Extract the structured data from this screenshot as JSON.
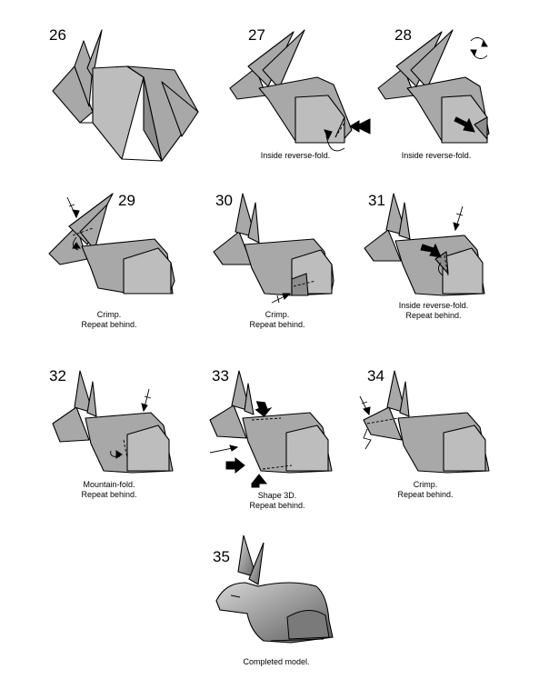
{
  "steps": [
    {
      "number": "26",
      "caption": ""
    },
    {
      "number": "27",
      "caption": "Inside reverse-fold."
    },
    {
      "number": "28",
      "caption": "Inside reverse-fold."
    },
    {
      "number": "29",
      "caption": "Crimp.\nRepeat behind."
    },
    {
      "number": "30",
      "caption": "Crimp.\nRepeat behind."
    },
    {
      "number": "31",
      "caption": "Inside reverse-fold.\nRepeat behind."
    },
    {
      "number": "32",
      "caption": "Mountain-fold.\nRepeat behind."
    },
    {
      "number": "33",
      "caption": "Shape 3D.\nRepeat behind."
    },
    {
      "number": "34",
      "caption": "Crimp.\nRepeat behind."
    },
    {
      "number": "35",
      "caption": "Completed model."
    }
  ],
  "icons": {
    "turn_over": "rotate-arrows-icon",
    "fold_arrow": "black-push-arrow-icon"
  }
}
